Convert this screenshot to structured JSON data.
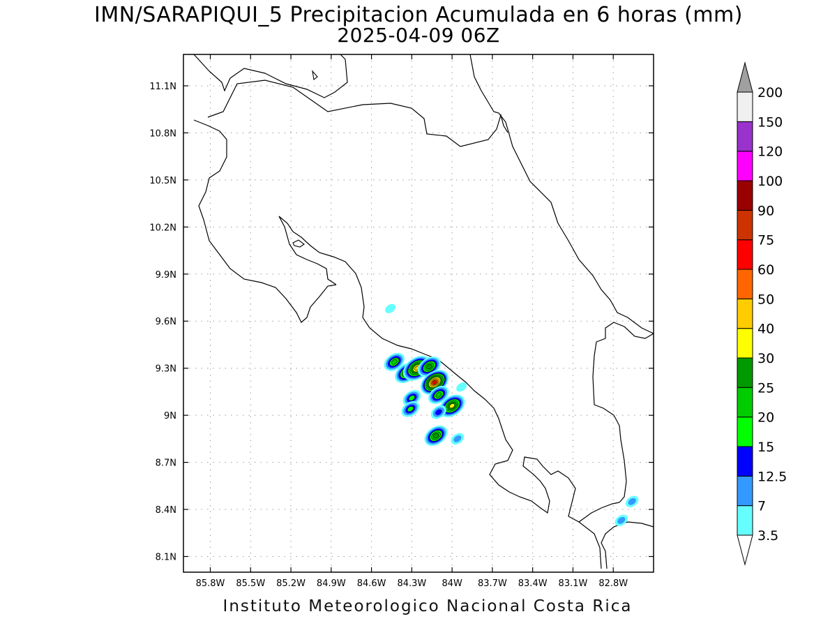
{
  "title": {
    "line1": "IMN/SARAPIQUI_5 Precipitacion Acumulada en 6 horas (mm)",
    "line2": "2025-04-09 06Z"
  },
  "footer": "Instituto Meteorologico Nacional Costa Rica",
  "map": {
    "lon_range": [
      -86.0,
      -82.5
    ],
    "lat_range": [
      8.0,
      11.3
    ],
    "grid": true,
    "x_ticks": [
      {
        "value": -85.8,
        "label": "85.8W"
      },
      {
        "value": -85.5,
        "label": "85.5W"
      },
      {
        "value": -85.2,
        "label": "85.2W"
      },
      {
        "value": -84.9,
        "label": "84.9W"
      },
      {
        "value": -84.6,
        "label": "84.6W"
      },
      {
        "value": -84.3,
        "label": "84.3W"
      },
      {
        "value": -84.0,
        "label": "84W"
      },
      {
        "value": -83.7,
        "label": "83.7W"
      },
      {
        "value": -83.4,
        "label": "83.4W"
      },
      {
        "value": -83.1,
        "label": "83.1W"
      },
      {
        "value": -82.8,
        "label": "82.8W"
      }
    ],
    "y_ticks": [
      {
        "value": 11.1,
        "label": "11.1N"
      },
      {
        "value": 10.8,
        "label": "10.8N"
      },
      {
        "value": 10.5,
        "label": "10.5N"
      },
      {
        "value": 10.2,
        "label": "10.2N"
      },
      {
        "value": 9.9,
        "label": "9.9N"
      },
      {
        "value": 9.6,
        "label": "9.6N"
      },
      {
        "value": 9.3,
        "label": "9.3N"
      },
      {
        "value": 9.0,
        "label": "9N"
      },
      {
        "value": 8.7,
        "label": "8.7N"
      },
      {
        "value": 8.4,
        "label": "8.4N"
      },
      {
        "value": 8.1,
        "label": "8.1N"
      }
    ]
  },
  "colorbar": {
    "levels": [
      {
        "label": "3.5",
        "color": "#66ffff"
      },
      {
        "label": "7",
        "color": "#3399ff"
      },
      {
        "label": "12.5",
        "color": "#0000ff"
      },
      {
        "label": "15",
        "color": "#00ff00"
      },
      {
        "label": "20",
        "color": "#00cc00"
      },
      {
        "label": "25",
        "color": "#009900"
      },
      {
        "label": "30",
        "color": "#ffff00"
      },
      {
        "label": "40",
        "color": "#ffcc00"
      },
      {
        "label": "50",
        "color": "#ff6600"
      },
      {
        "label": "60",
        "color": "#ff0000"
      },
      {
        "label": "75",
        "color": "#cc3300"
      },
      {
        "label": "90",
        "color": "#990000"
      },
      {
        "label": "100",
        "color": "#ff00ff"
      },
      {
        "label": "120",
        "color": "#9933cc"
      },
      {
        "label": "150",
        "color": "#f0f0f0"
      },
      {
        "label": "200",
        "color": "#a0a0a0"
      }
    ]
  },
  "precip_cells": [
    {
      "lon": -84.43,
      "lat": 9.34,
      "value": 22
    },
    {
      "lon": -84.34,
      "lat": 9.27,
      "value": 27
    },
    {
      "lon": -84.26,
      "lat": 9.3,
      "value": 42
    },
    {
      "lon": -84.17,
      "lat": 9.31,
      "value": 25
    },
    {
      "lon": -84.13,
      "lat": 9.21,
      "value": 62
    },
    {
      "lon": -84.1,
      "lat": 9.13,
      "value": 22
    },
    {
      "lon": -84.3,
      "lat": 9.11,
      "value": 18
    },
    {
      "lon": -84.31,
      "lat": 9.04,
      "value": 16
    },
    {
      "lon": -84.0,
      "lat": 9.06,
      "value": 38
    },
    {
      "lon": -84.1,
      "lat": 9.02,
      "value": 13
    },
    {
      "lon": -84.12,
      "lat": 8.87,
      "value": 27
    },
    {
      "lon": -83.96,
      "lat": 8.85,
      "value": 12
    },
    {
      "lon": -83.93,
      "lat": 9.18,
      "value": 4
    },
    {
      "lon": -84.46,
      "lat": 9.68,
      "value": 4
    },
    {
      "lon": -82.66,
      "lat": 8.45,
      "value": 9
    },
    {
      "lon": -82.74,
      "lat": 8.33,
      "value": 8
    }
  ]
}
